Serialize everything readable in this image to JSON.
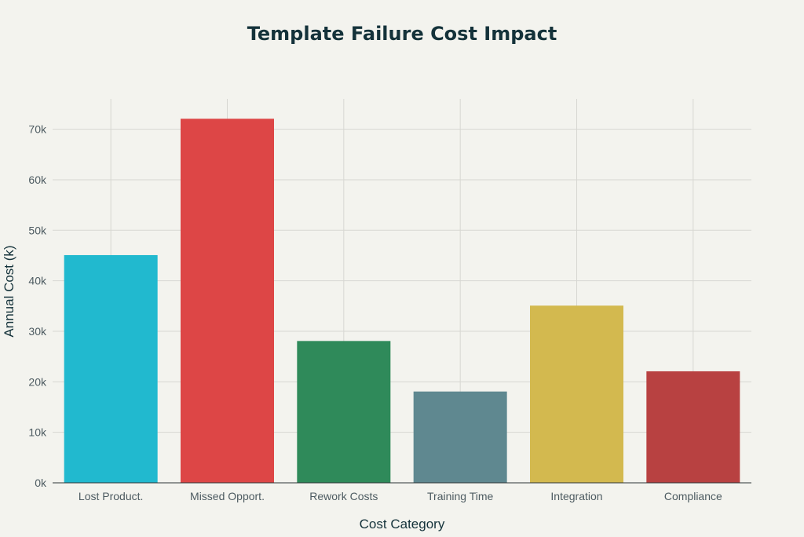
{
  "chart_data": {
    "type": "bar",
    "title": "Template Failure Cost Impact",
    "xlabel": "Cost Category",
    "ylabel": "Annual Cost (k)",
    "categories": [
      "Lost Product.",
      "Missed Opport.",
      "Rework Costs",
      "Training Time",
      "Integration",
      "Compliance"
    ],
    "values": [
      45000,
      72000,
      28000,
      18000,
      35000,
      22000
    ],
    "colors": [
      "#21b9cf",
      "#dd4646",
      "#2f8a5a",
      "#5f8890",
      "#d3b94f",
      "#b84141"
    ],
    "ylim": [
      0,
      76000
    ],
    "yticks": [
      0,
      10000,
      20000,
      30000,
      40000,
      50000,
      60000,
      70000
    ],
    "ytick_labels": [
      "0k",
      "10k",
      "20k",
      "30k",
      "40k",
      "50k",
      "60k",
      "70k"
    ],
    "grid": true,
    "legend": "none"
  }
}
